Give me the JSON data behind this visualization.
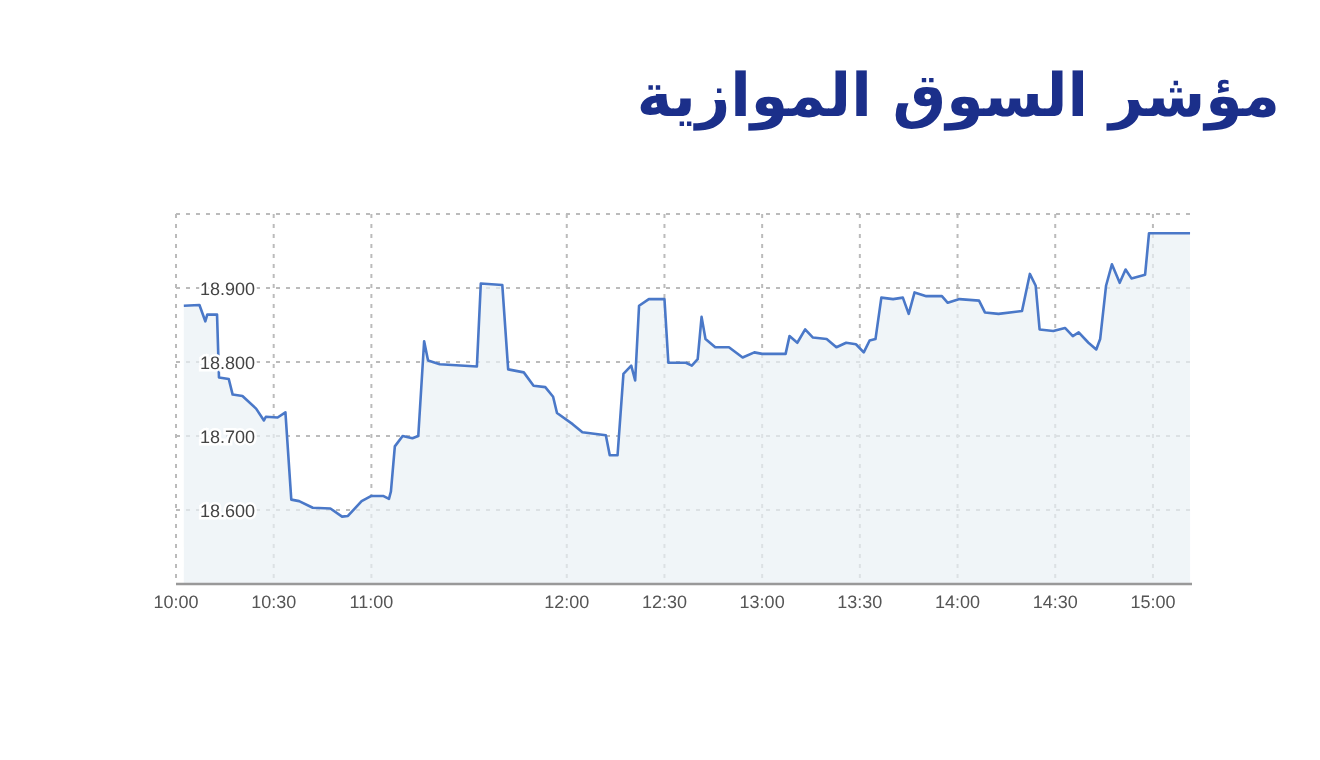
{
  "chart_data": {
    "type": "area",
    "title": "مؤشر السوق الموازية",
    "x": [
      10.04,
      10.12,
      10.15,
      10.16,
      10.21,
      10.22,
      10.27,
      10.29,
      10.34,
      10.41,
      10.45,
      10.46,
      10.52,
      10.56,
      10.59,
      10.63,
      10.7,
      10.79,
      10.85,
      10.88,
      10.95,
      11.0,
      11.06,
      11.09,
      11.1,
      11.12,
      11.16,
      11.21,
      11.24,
      11.27,
      11.29,
      11.35,
      11.54,
      11.56,
      11.67,
      11.7,
      11.78,
      11.83,
      11.89,
      11.93,
      11.95,
      12.03,
      12.08,
      12.2,
      12.22,
      12.26,
      12.29,
      12.33,
      12.35,
      12.37,
      12.42,
      12.5,
      12.52,
      12.61,
      12.64,
      12.67,
      12.69,
      12.71,
      12.76,
      12.83,
      12.9,
      12.96,
      13.0,
      13.12,
      13.14,
      13.18,
      13.22,
      13.26,
      13.33,
      13.38,
      13.43,
      13.48,
      13.52,
      13.55,
      13.58,
      13.61,
      13.67,
      13.72,
      13.75,
      13.78,
      13.84,
      13.92,
      13.95,
      14.01,
      14.11,
      14.14,
      14.21,
      14.33,
      14.37,
      14.4,
      14.42,
      14.49,
      14.55,
      14.59,
      14.62,
      14.67,
      14.71,
      14.73,
      14.76,
      14.79,
      14.83,
      14.86,
      14.89,
      14.96,
      14.98,
      15.19
    ],
    "series": [
      {
        "color": "#4a78c8",
        "values": [
          18876,
          18877,
          18855,
          18864,
          18864,
          18779,
          18777,
          18756,
          18754,
          18737,
          18721,
          18726,
          18725,
          18732,
          18614,
          18612,
          18603,
          18602,
          18591,
          18592,
          18612,
          18619,
          18619,
          18615,
          18625,
          18686,
          18700,
          18697,
          18700,
          18828,
          18802,
          18797,
          18794,
          18906,
          18904,
          18790,
          18786,
          18768,
          18766,
          18753,
          18731,
          18716,
          18705,
          18701,
          18674,
          18674,
          18784,
          18795,
          18775,
          18876,
          18885,
          18885,
          18799,
          18799,
          18795,
          18804,
          18861,
          18831,
          18820,
          18820,
          18806,
          18813,
          18811,
          18811,
          18835,
          18826,
          18844,
          18833,
          18831,
          18820,
          18826,
          18824,
          18813,
          18829,
          18831,
          18887,
          18885,
          18887,
          18865,
          18894,
          18889,
          18889,
          18880,
          18885,
          18883,
          18867,
          18865,
          18869,
          18919,
          18903,
          18844,
          18842,
          18846,
          18835,
          18840,
          18826,
          18817,
          18831,
          18903,
          18932,
          18907,
          18925,
          18913,
          18918,
          18974,
          18974
        ]
      }
    ],
    "xlim": [
      10,
      15.2
    ],
    "xticks": [
      {
        "value": 10,
        "label": "10:00"
      },
      {
        "value": 10.5,
        "label": "10:30"
      },
      {
        "value": 11,
        "label": "11:00"
      },
      {
        "value": 12,
        "label": "12:00"
      },
      {
        "value": 12.5,
        "label": "12:30"
      },
      {
        "value": 13,
        "label": "13:00"
      },
      {
        "value": 13.5,
        "label": "13:30"
      },
      {
        "value": 14,
        "label": "14:00"
      },
      {
        "value": 14.5,
        "label": "14:30"
      },
      {
        "value": 15,
        "label": "15:00"
      }
    ],
    "ylim": [
      18500,
      19000
    ],
    "yticks": [
      {
        "value": 18600,
        "label": "18.600"
      },
      {
        "value": 18700,
        "label": "18.700"
      },
      {
        "value": 18800,
        "label": "18.800"
      },
      {
        "value": 18900,
        "label": "18.900"
      },
      {
        "value": 19000,
        "label": null
      }
    ],
    "grid": true
  }
}
